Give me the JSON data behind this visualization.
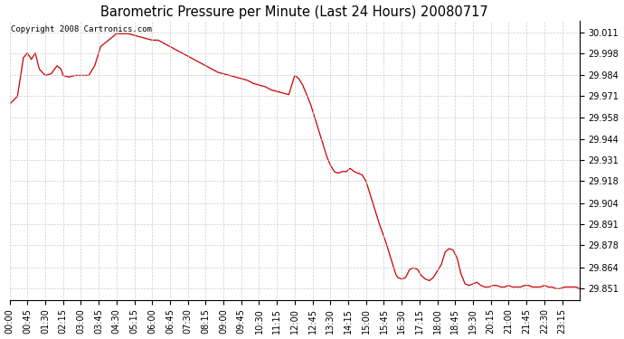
{
  "title": "Barometric Pressure per Minute (Last 24 Hours) 20080717",
  "copyright_text": "Copyright 2008 Cartronics.com",
  "line_color": "#cc0000",
  "bg_color": "#ffffff",
  "grid_color": "#cccccc",
  "yticks": [
    29.851,
    29.864,
    29.878,
    29.891,
    29.904,
    29.918,
    29.931,
    29.944,
    29.958,
    29.971,
    29.984,
    29.998,
    30.011
  ],
  "xtick_labels": [
    "00:00",
    "00:45",
    "01:30",
    "02:15",
    "03:00",
    "03:45",
    "04:30",
    "05:15",
    "06:00",
    "06:45",
    "07:30",
    "08:15",
    "09:00",
    "09:45",
    "10:30",
    "11:15",
    "12:00",
    "12:45",
    "13:30",
    "14:15",
    "15:00",
    "15:45",
    "16:30",
    "17:15",
    "18:00",
    "18:45",
    "19:30",
    "20:15",
    "21:00",
    "21:45",
    "22:30",
    "23:15"
  ],
  "ylim": [
    29.844,
    30.018
  ],
  "figsize": [
    6.9,
    3.75
  ],
  "dpi": 100,
  "control_points": [
    [
      0,
      29.966
    ],
    [
      20,
      29.971
    ],
    [
      35,
      29.995
    ],
    [
      45,
      29.998
    ],
    [
      55,
      29.994
    ],
    [
      65,
      29.998
    ],
    [
      75,
      29.988
    ],
    [
      90,
      29.984
    ],
    [
      105,
      29.985
    ],
    [
      120,
      29.99
    ],
    [
      130,
      29.988
    ],
    [
      135,
      29.984
    ],
    [
      150,
      29.983
    ],
    [
      165,
      29.984
    ],
    [
      180,
      29.984
    ],
    [
      200,
      29.984
    ],
    [
      215,
      29.99
    ],
    [
      230,
      30.002
    ],
    [
      240,
      30.004
    ],
    [
      255,
      30.007
    ],
    [
      270,
      30.01
    ],
    [
      285,
      30.01
    ],
    [
      300,
      30.01
    ],
    [
      315,
      30.009
    ],
    [
      330,
      30.008
    ],
    [
      345,
      30.007
    ],
    [
      360,
      30.006
    ],
    [
      375,
      30.006
    ],
    [
      390,
      30.004
    ],
    [
      405,
      30.002
    ],
    [
      420,
      30.0
    ],
    [
      435,
      29.998
    ],
    [
      450,
      29.996
    ],
    [
      465,
      29.994
    ],
    [
      480,
      29.992
    ],
    [
      495,
      29.99
    ],
    [
      510,
      29.988
    ],
    [
      525,
      29.986
    ],
    [
      540,
      29.985
    ],
    [
      555,
      29.984
    ],
    [
      570,
      29.983
    ],
    [
      585,
      29.982
    ],
    [
      600,
      29.981
    ],
    [
      615,
      29.979
    ],
    [
      630,
      29.978
    ],
    [
      645,
      29.977
    ],
    [
      660,
      29.975
    ],
    [
      675,
      29.974
    ],
    [
      690,
      29.973
    ],
    [
      705,
      29.972
    ],
    [
      720,
      29.984
    ],
    [
      730,
      29.982
    ],
    [
      740,
      29.978
    ],
    [
      750,
      29.972
    ],
    [
      760,
      29.966
    ],
    [
      770,
      29.958
    ],
    [
      780,
      29.95
    ],
    [
      790,
      29.942
    ],
    [
      800,
      29.934
    ],
    [
      810,
      29.928
    ],
    [
      820,
      29.924
    ],
    [
      830,
      29.923
    ],
    [
      840,
      29.924
    ],
    [
      850,
      29.924
    ],
    [
      860,
      29.926
    ],
    [
      870,
      29.924
    ],
    [
      880,
      29.923
    ],
    [
      890,
      29.922
    ],
    [
      900,
      29.918
    ],
    [
      910,
      29.91
    ],
    [
      920,
      29.902
    ],
    [
      930,
      29.894
    ],
    [
      940,
      29.887
    ],
    [
      950,
      29.88
    ],
    [
      960,
      29.872
    ],
    [
      970,
      29.864
    ],
    [
      975,
      29.86
    ],
    [
      980,
      29.858
    ],
    [
      990,
      29.857
    ],
    [
      1000,
      29.858
    ],
    [
      1010,
      29.863
    ],
    [
      1020,
      29.864
    ],
    [
      1030,
      29.863
    ],
    [
      1035,
      29.861
    ],
    [
      1040,
      29.859
    ],
    [
      1050,
      29.857
    ],
    [
      1060,
      29.856
    ],
    [
      1070,
      29.858
    ],
    [
      1080,
      29.862
    ],
    [
      1090,
      29.866
    ],
    [
      1100,
      29.874
    ],
    [
      1110,
      29.876
    ],
    [
      1120,
      29.875
    ],
    [
      1130,
      29.87
    ],
    [
      1140,
      29.86
    ],
    [
      1150,
      29.854
    ],
    [
      1160,
      29.853
    ],
    [
      1170,
      29.854
    ],
    [
      1180,
      29.855
    ],
    [
      1190,
      29.853
    ],
    [
      1200,
      29.852
    ],
    [
      1210,
      29.852
    ],
    [
      1220,
      29.853
    ],
    [
      1230,
      29.853
    ],
    [
      1240,
      29.852
    ],
    [
      1250,
      29.852
    ],
    [
      1260,
      29.853
    ],
    [
      1270,
      29.852
    ],
    [
      1280,
      29.852
    ],
    [
      1290,
      29.852
    ],
    [
      1300,
      29.853
    ],
    [
      1310,
      29.853
    ],
    [
      1320,
      29.852
    ],
    [
      1330,
      29.852
    ],
    [
      1340,
      29.852
    ],
    [
      1350,
      29.853
    ],
    [
      1360,
      29.852
    ],
    [
      1370,
      29.852
    ],
    [
      1380,
      29.851
    ],
    [
      1390,
      29.851
    ],
    [
      1400,
      29.852
    ],
    [
      1410,
      29.852
    ],
    [
      1420,
      29.852
    ],
    [
      1430,
      29.852
    ],
    [
      1439,
      29.851
    ]
  ]
}
